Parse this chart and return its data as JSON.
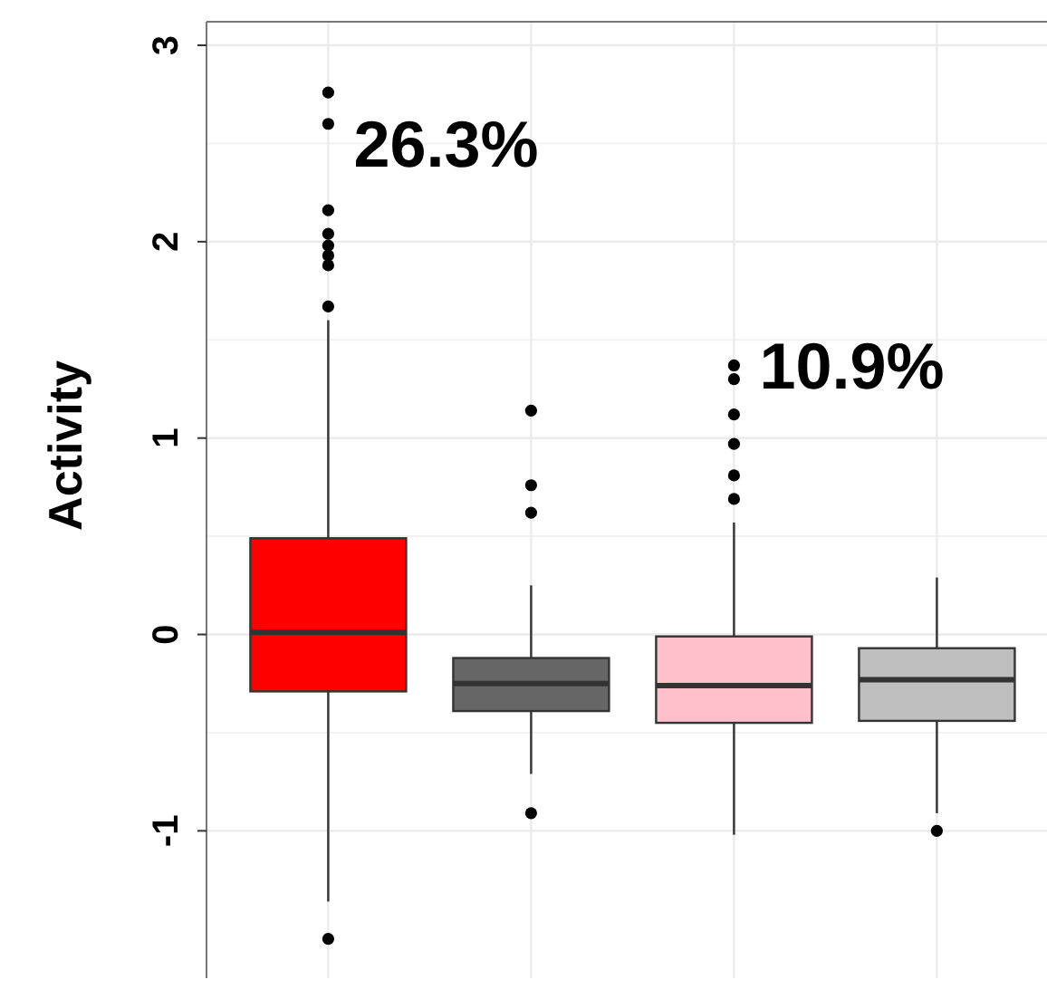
{
  "chart_data": {
    "type": "box",
    "ylabel": "Activity",
    "categories": [
      null,
      null,
      null,
      null
    ],
    "ylim": [
      -1.75,
      3.12
    ],
    "yticks": [
      -1,
      0,
      1,
      2,
      3
    ],
    "grid": true,
    "tick_labels": "y",
    "series": [
      {
        "colors": [
          "#ff0000",
          "#666666",
          "#ffc0cb",
          "#bebebe"
        ],
        "boxes": [
          {
            "low": -1.36,
            "q1": -0.29,
            "median": 0.01,
            "q3": 0.49,
            "high": 1.6,
            "outliers": [
              2.76,
              2.6,
              2.16,
              2.04,
              1.98,
              1.93,
              1.88,
              1.67,
              -1.55
            ]
          },
          {
            "low": -0.71,
            "q1": -0.39,
            "median": -0.25,
            "q3": -0.12,
            "high": 0.25,
            "outliers": [
              1.14,
              0.76,
              0.62,
              -0.91
            ]
          },
          {
            "low": -1.02,
            "q1": -0.45,
            "median": -0.26,
            "q3": -0.01,
            "high": 0.57,
            "outliers": [
              1.37,
              1.3,
              1.12,
              0.97,
              0.81,
              0.69
            ]
          },
          {
            "low": -0.91,
            "q1": -0.44,
            "median": -0.23,
            "q3": -0.07,
            "high": 0.29,
            "outliers": [
              -1.0
            ]
          }
        ]
      }
    ],
    "annotations": [
      "26.3%",
      "10.9%"
    ]
  }
}
